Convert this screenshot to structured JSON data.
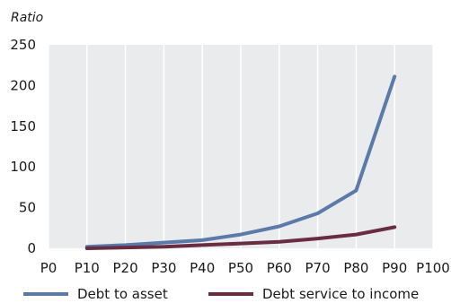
{
  "chart_data": {
    "type": "line",
    "ylabel": "Ratio",
    "xlabel": "",
    "x_ticks": [
      "P0",
      "P10",
      "P20",
      "P30",
      "P40",
      "P50",
      "P60",
      "P70",
      "P80",
      "P90",
      "P100"
    ],
    "y_ticks": [
      0,
      50,
      100,
      150,
      200,
      250
    ],
    "xlim": [
      0,
      100
    ],
    "ylim": [
      0,
      250
    ],
    "grid": "vertical",
    "legend": "bottom",
    "series": [
      {
        "name": "Debt to asset",
        "color": "#5b7aa9",
        "x": [
          10,
          20,
          30,
          40,
          50,
          60,
          70,
          80,
          90
        ],
        "y": [
          2,
          4,
          7,
          10,
          17,
          27,
          43,
          71,
          211
        ]
      },
      {
        "name": "Debt service to income",
        "color": "#6a2c43",
        "x": [
          10,
          20,
          30,
          40,
          50,
          60,
          70,
          80,
          90
        ],
        "y": [
          0,
          1,
          2,
          4,
          6,
          8,
          12,
          17,
          26
        ]
      }
    ]
  }
}
